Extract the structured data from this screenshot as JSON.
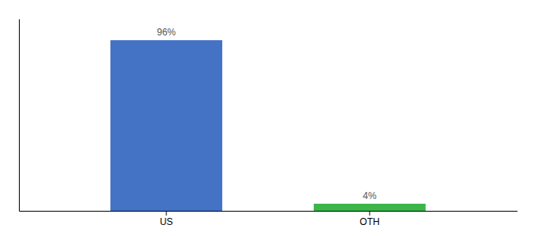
{
  "chart_data": {
    "type": "bar",
    "categories": [
      "US",
      "OTH"
    ],
    "values": [
      96,
      4
    ],
    "colors": [
      "#4472c4",
      "#3cb54a"
    ],
    "data_labels": true,
    "value_labels": [
      "96%",
      "4%"
    ],
    "ylim": [
      0,
      108
    ],
    "tick_labels": "x"
  }
}
